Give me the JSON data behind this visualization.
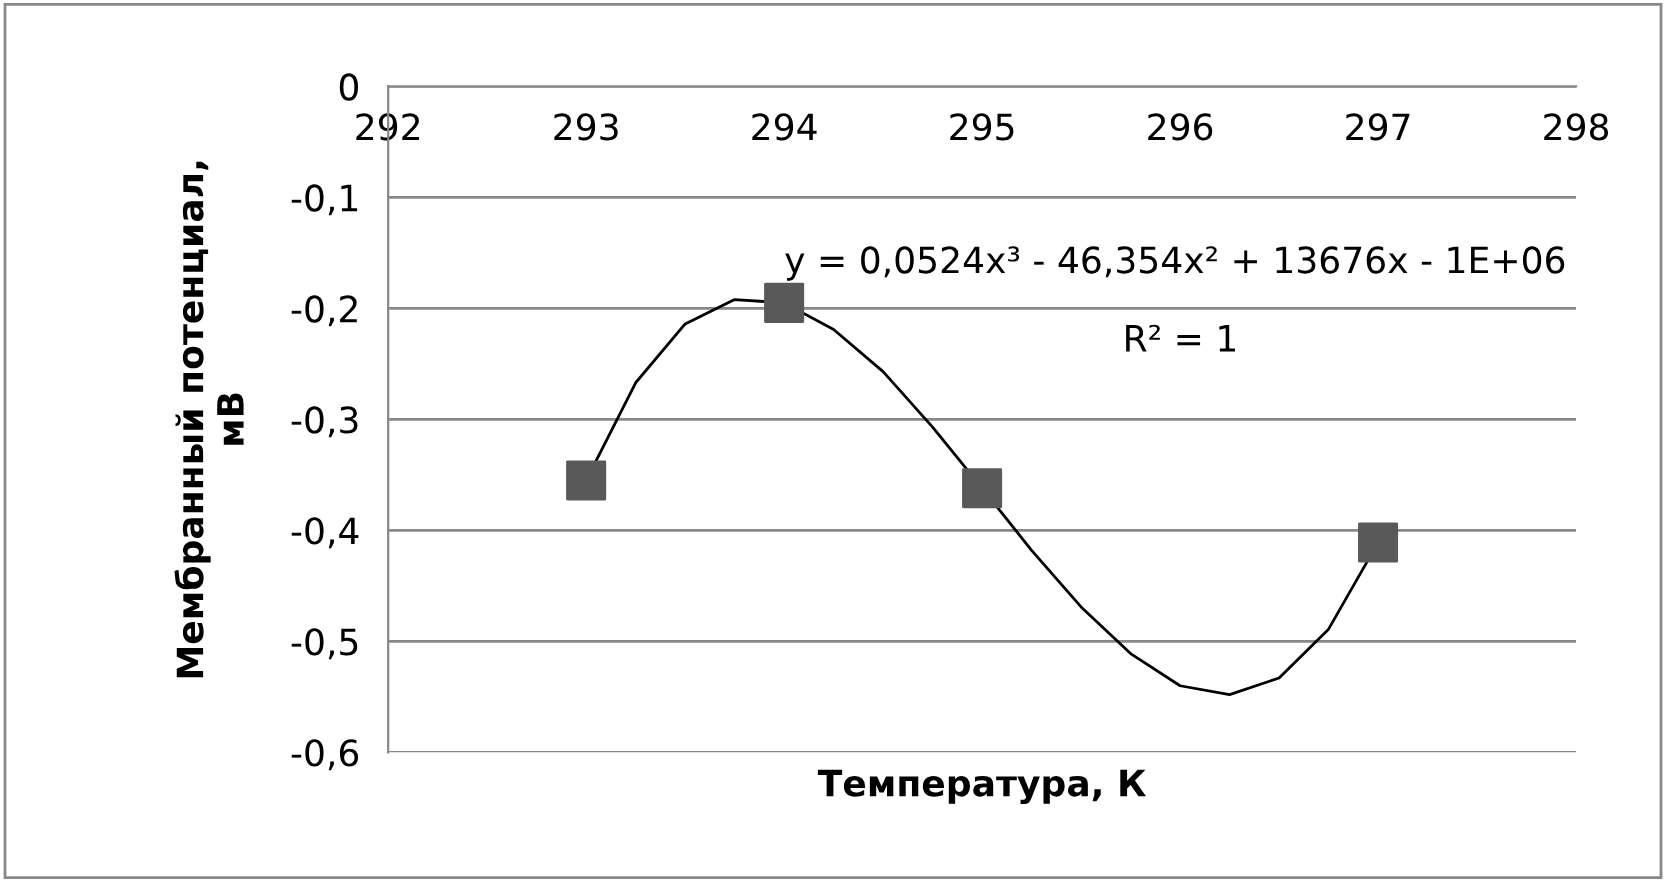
{
  "chart_data": {
    "type": "scatter",
    "xlabel": "Температура, К",
    "ylabel": "Мембранный потенциал,\nмВ",
    "series": [
      {
        "type": "line",
        "color": "#000000",
        "x": [
          293,
          293.25,
          293.5,
          293.75,
          294,
          294.25,
          294.5,
          294.75,
          295,
          295.25,
          295.5,
          295.75,
          296,
          296.25,
          296.5,
          296.75,
          297
        ],
        "values": [
          -0.355,
          -0.267,
          -0.214,
          -0.192,
          -0.195,
          -0.219,
          -0.257,
          -0.307,
          -0.362,
          -0.418,
          -0.469,
          -0.511,
          -0.54,
          -0.548,
          -0.533,
          -0.489,
          -0.411
        ],
        "marker": "none",
        "line_style": "solid"
      },
      {
        "color": "#595959",
        "x": [
          293,
          294,
          295,
          297
        ],
        "values": [
          -0.355,
          -0.195,
          -0.362,
          -0.411
        ],
        "marker": "square"
      }
    ],
    "annotations": [
      {
        "text": "y = 0,0524x³ - 46,354x² + 13676x - 1E+06",
        "x": 294,
        "y": -0.195
      },
      "R² = 1"
    ],
    "xlim": [
      292,
      298
    ],
    "xticks": [
      292,
      293,
      294,
      295,
      296,
      297,
      298
    ],
    "ylim": [
      -0.6,
      0
    ],
    "yticks": [
      {
        "value": -0.6,
        "label": "-0,6"
      },
      {
        "value": -0.5,
        "label": "-0,5"
      },
      {
        "value": -0.4,
        "label": "-0,4"
      },
      {
        "value": -0.3,
        "label": "-0,3"
      },
      {
        "value": -0.2,
        "label": "-0,2"
      },
      {
        "value": -0.1,
        "label": "-0,1"
      },
      0
    ],
    "grid": "y",
    "legend": false
  }
}
